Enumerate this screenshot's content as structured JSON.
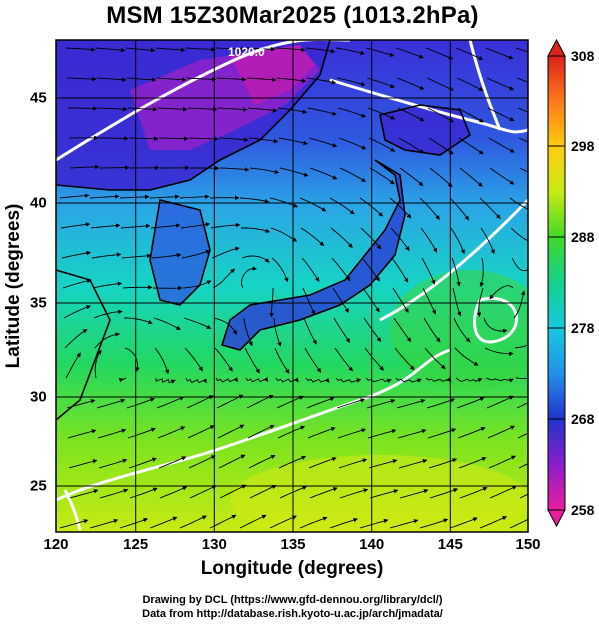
{
  "title": "MSM 15Z30Mar2025 (1013.2hPa)",
  "x_axis": {
    "label": "Longitude (degrees)",
    "ticks": [
      "120",
      "125",
      "130",
      "135",
      "140",
      "145",
      "150"
    ]
  },
  "y_axis": {
    "label": "Latitude  (degrees)",
    "ticks": [
      "25",
      "30",
      "35",
      "40",
      "45"
    ]
  },
  "colorbar": {
    "ticks": [
      "308",
      "298",
      "288",
      "278",
      "268",
      "258"
    ],
    "min": 258,
    "max": 308
  },
  "contour_labels": [
    "1020.0"
  ],
  "credits": {
    "line1": "Drawing by DCL (https://www.gfd-dennou.org/library/dcl/)",
    "line2": "Data from http://database.rish.kyoto-u.ac.jp/arch/jmadata/"
  }
}
